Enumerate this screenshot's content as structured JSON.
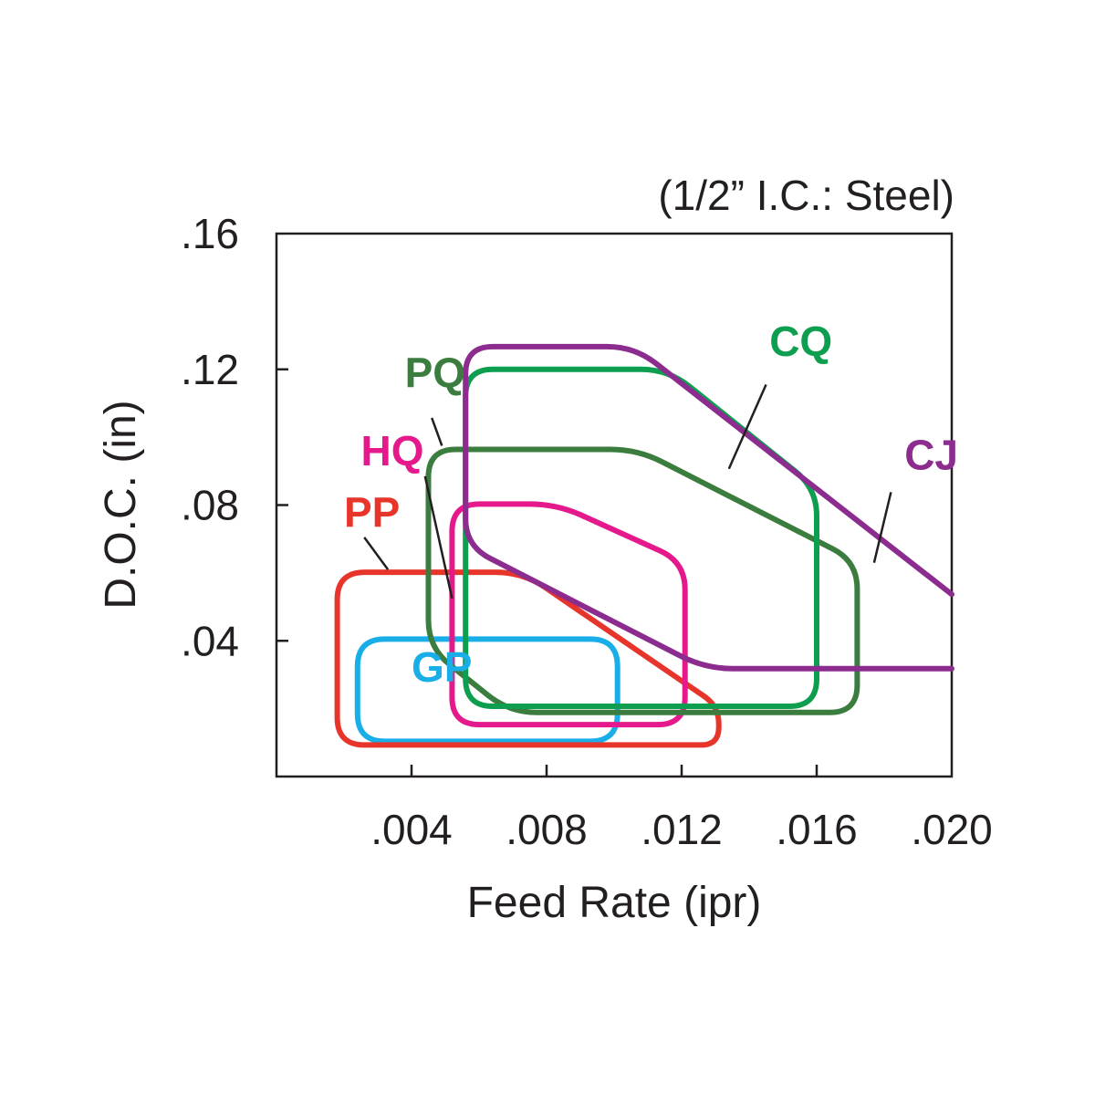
{
  "chart_data": {
    "type": "area",
    "subtitle": "(1/2” I.C.: Steel)",
    "xlabel": "Feed Rate (ipr)",
    "ylabel": "D.O.C. (in)",
    "xlim": [
      0,
      0.02
    ],
    "ylim": [
      0,
      0.16
    ],
    "x_ticks": [
      {
        "value": 0.004,
        "label": ".004"
      },
      {
        "value": 0.008,
        "label": ".008"
      },
      {
        "value": 0.012,
        "label": ".012"
      },
      {
        "value": 0.016,
        "label": ".016"
      },
      {
        "value": 0.02,
        "label": ".020"
      }
    ],
    "y_ticks": [
      {
        "value": 0.04,
        "label": ".04"
      },
      {
        "value": 0.08,
        "label": ".08"
      },
      {
        "value": 0.12,
        "label": ".12"
      },
      {
        "value": 0.16,
        "label": ".16"
      }
    ],
    "grid": false,
    "series": [
      {
        "name": "GP",
        "color": "#1aaee8",
        "points": [
          [
            0.0024,
            0.0104
          ],
          [
            0.0101,
            0.0104
          ],
          [
            0.0101,
            0.0405
          ],
          [
            0.0024,
            0.0405
          ]
        ]
      },
      {
        "name": "PP",
        "color": "#e8352b",
        "points": [
          [
            0.0018,
            0.0093
          ],
          [
            0.0131,
            0.0093
          ],
          [
            0.0131,
            0.0207
          ],
          [
            0.0073,
            0.0602
          ],
          [
            0.0018,
            0.0602
          ]
        ]
      },
      {
        "name": "HQ",
        "color": "#e5198c",
        "points": [
          [
            0.0052,
            0.0153
          ],
          [
            0.0121,
            0.0153
          ],
          [
            0.0121,
            0.0632
          ],
          [
            0.0083,
            0.0803
          ],
          [
            0.0052,
            0.0803
          ]
        ]
      },
      {
        "name": "PQ",
        "color": "#3b7d3f",
        "points": [
          [
            0.0045,
            0.038
          ],
          [
            0.0069,
            0.0189
          ],
          [
            0.0172,
            0.0189
          ],
          [
            0.0172,
            0.0634
          ],
          [
            0.0107,
            0.0964
          ],
          [
            0.0045,
            0.0964
          ]
        ]
      },
      {
        "name": "CQ",
        "color": "#0d9e4f",
        "points": [
          [
            0.0056,
            0.0207
          ],
          [
            0.016,
            0.0207
          ],
          [
            0.016,
            0.0849
          ],
          [
            0.0116,
            0.12
          ],
          [
            0.0056,
            0.12
          ]
        ]
      },
      {
        "name": "CJ",
        "color": "#8b2c8e",
        "open": true,
        "points": [
          [
            0.02,
            0.0318
          ],
          [
            0.0127,
            0.0318
          ],
          [
            0.0056,
            0.068
          ],
          [
            0.0056,
            0.1267
          ],
          [
            0.0106,
            0.1267
          ],
          [
            0.02,
            0.0537
          ]
        ]
      }
    ],
    "annotations": [
      {
        "text": "GP",
        "series": "GP",
        "at": [
          0.004,
          0.028
        ],
        "leader": null
      },
      {
        "text": "PP",
        "series": "PP",
        "at": [
          0.002,
          0.0735
        ],
        "leader": [
          [
            0.0026,
            0.0705
          ],
          [
            0.0033,
            0.061
          ]
        ]
      },
      {
        "text": "HQ",
        "series": "HQ",
        "at": [
          0.0025,
          0.0917
        ],
        "leader": [
          [
            0.0044,
            0.0885
          ],
          [
            0.0052,
            0.0525
          ]
        ]
      },
      {
        "text": "PQ",
        "series": "PQ",
        "at": [
          0.0038,
          0.1147
        ],
        "leader": [
          [
            0.0046,
            0.1057
          ],
          [
            0.0049,
            0.0975
          ]
        ]
      },
      {
        "text": "CQ",
        "series": "CQ",
        "at": [
          0.0146,
          0.124
        ],
        "leader": [
          [
            0.0145,
            0.1155
          ],
          [
            0.0134,
            0.0907
          ]
        ]
      },
      {
        "text": "CJ",
        "series": "CJ",
        "at": [
          0.0186,
          0.0905
        ],
        "leader": [
          [
            0.0182,
            0.0838
          ],
          [
            0.0177,
            0.063
          ]
        ]
      }
    ]
  }
}
